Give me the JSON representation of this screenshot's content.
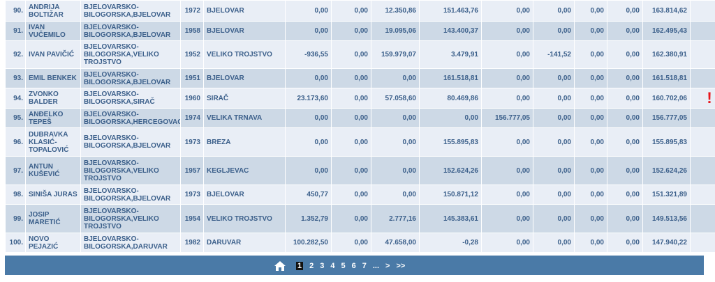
{
  "rows": [
    {
      "rank": "90.",
      "name": "ANDRIJA BOLTIŽAR",
      "region": "BJELOVARSKO-BILOGORSKA,BJELOVAR",
      "year": "1972",
      "town": "BJELOVAR",
      "c1": "0,00",
      "c2": "0,00",
      "c3": "12.350,86",
      "c4": "151.463,76",
      "c5": "0,00",
      "c6": "0,00",
      "c7": "0,00",
      "c8": "0,00",
      "total": "163.814,62",
      "warn": ""
    },
    {
      "rank": "91.",
      "name": "IVAN VUČEMILO",
      "region": "BJELOVARSKO-BILOGORSKA,BJELOVAR",
      "year": "1958",
      "town": "BJELOVAR",
      "c1": "0,00",
      "c2": "0,00",
      "c3": "19.095,06",
      "c4": "143.400,37",
      "c5": "0,00",
      "c6": "0,00",
      "c7": "0,00",
      "c8": "0,00",
      "total": "162.495,43",
      "warn": ""
    },
    {
      "rank": "92.",
      "name": "IVAN PAVIČIĆ",
      "region": "BJELOVARSKO-BILOGORSKA,VELIKO TROJSTVO",
      "year": "1952",
      "town": "VELIKO TROJSTVO",
      "c1": "-936,55",
      "c2": "0,00",
      "c3": "159.979,07",
      "c4": "3.479,91",
      "c5": "0,00",
      "c6": "-141,52",
      "c7": "0,00",
      "c8": "0,00",
      "total": "162.380,91",
      "warn": ""
    },
    {
      "rank": "93.",
      "name": "EMIL BENKEK",
      "region": "BJELOVARSKO-BILOGORSKA,BJELOVAR",
      "year": "1951",
      "town": "BJELOVAR",
      "c1": "0,00",
      "c2": "0,00",
      "c3": "0,00",
      "c4": "161.518,81",
      "c5": "0,00",
      "c6": "0,00",
      "c7": "0,00",
      "c8": "0,00",
      "total": "161.518,81",
      "warn": ""
    },
    {
      "rank": "94.",
      "name": "ZVONKO BALDER",
      "region": "BJELOVARSKO-BILOGORSKA,SIRAČ",
      "year": "1960",
      "town": "SIRAČ",
      "c1": "23.173,60",
      "c2": "0,00",
      "c3": "57.058,60",
      "c4": "80.469,86",
      "c5": "0,00",
      "c6": "0,00",
      "c7": "0,00",
      "c8": "0,00",
      "total": "160.702,06",
      "warn": "!"
    },
    {
      "rank": "95.",
      "name": "ANĐELKO TEPEŠ",
      "region": "BJELOVARSKO-BILOGORSKA,HERCEGOVAC",
      "year": "1974",
      "town": "VELIKA TRNAVA",
      "c1": "0,00",
      "c2": "0,00",
      "c3": "0,00",
      "c4": "0,00",
      "c5": "156.777,05",
      "c6": "0,00",
      "c7": "0,00",
      "c8": "0,00",
      "total": "156.777,05",
      "warn": ""
    },
    {
      "rank": "96.",
      "name": "DUBRAVKA KLASIĆ-TOPALOVIĆ",
      "region": "BJELOVARSKO-BILOGORSKA,BJELOVAR",
      "year": "1973",
      "town": "BREZA",
      "c1": "0,00",
      "c2": "0,00",
      "c3": "0,00",
      "c4": "155.895,83",
      "c5": "0,00",
      "c6": "0,00",
      "c7": "0,00",
      "c8": "0,00",
      "total": "155.895,83",
      "warn": ""
    },
    {
      "rank": "97.",
      "name": "ANTUN KUŠEVIĆ",
      "region": "BJELOVARSKO-BILOGORSKA,VELIKO TROJSTVO",
      "year": "1957",
      "town": "KEGLJEVAC",
      "c1": "0,00",
      "c2": "0,00",
      "c3": "0,00",
      "c4": "152.624,26",
      "c5": "0,00",
      "c6": "0,00",
      "c7": "0,00",
      "c8": "0,00",
      "total": "152.624,26",
      "warn": ""
    },
    {
      "rank": "98.",
      "name": "SINIŠA JURAS",
      "region": "BJELOVARSKO-BILOGORSKA,BJELOVAR",
      "year": "1973",
      "town": "BJELOVAR",
      "c1": "450,77",
      "c2": "0,00",
      "c3": "0,00",
      "c4": "150.871,12",
      "c5": "0,00",
      "c6": "0,00",
      "c7": "0,00",
      "c8": "0,00",
      "total": "151.321,89",
      "warn": ""
    },
    {
      "rank": "99.",
      "name": "JOSIP MARETIĆ",
      "region": "BJELOVARSKO-BILOGORSKA,VELIKO TROJSTVO",
      "year": "1954",
      "town": "VELIKO TROJSTVO",
      "c1": "1.352,79",
      "c2": "0,00",
      "c3": "2.777,16",
      "c4": "145.383,61",
      "c5": "0,00",
      "c6": "0,00",
      "c7": "0,00",
      "c8": "0,00",
      "total": "149.513,56",
      "warn": ""
    },
    {
      "rank": "100.",
      "name": "NOVO PEJAZIĆ",
      "region": "BJELOVARSKO-BILOGORSKA,DARUVAR",
      "year": "1982",
      "town": "DARUVAR",
      "c1": "100.282,50",
      "c2": "0,00",
      "c3": "47.658,00",
      "c4": "-0,28",
      "c5": "0,00",
      "c6": "0,00",
      "c7": "0,00",
      "c8": "0,00",
      "total": "147.940,22",
      "warn": ""
    }
  ],
  "pagination": {
    "home_icon": "home-icon",
    "pages": [
      "1",
      "2",
      "3",
      "4",
      "5",
      "6",
      "7",
      "...",
      ">",
      ">>"
    ],
    "active": "1"
  },
  "colors": {
    "header_bar": "#4a7aa7",
    "row_light": "#e9eef6",
    "row_dark": "#cdd9e6",
    "text": "#3b5f8a",
    "warning": "#e8151b"
  }
}
